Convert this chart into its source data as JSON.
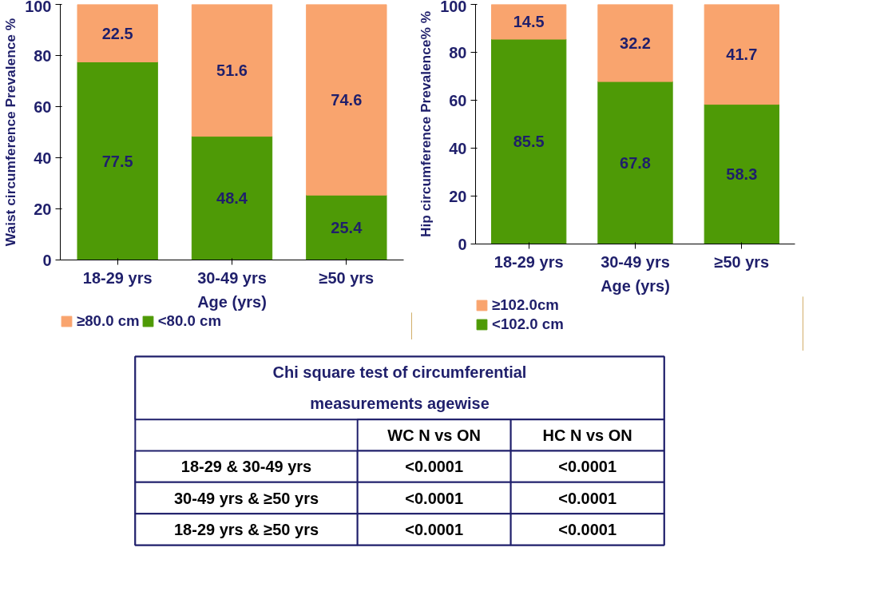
{
  "chart_data": [
    {
      "type": "bar",
      "stacked": true,
      "categories": [
        "18-29 yrs",
        "30-49 yrs",
        "≥50 yrs"
      ],
      "xlabel": "Age (yrs)",
      "ylabel": "Waist circumference Prevalence %",
      "ylim": [
        0,
        100
      ],
      "yticks": [
        0,
        20,
        40,
        60,
        80,
        100
      ],
      "grid": false,
      "legend": "bottom",
      "data_labels": true,
      "series": [
        {
          "name": "<80.0 cm",
          "color": "#4e9a06",
          "values": [
            77.5,
            48.4,
            25.4
          ]
        },
        {
          "name": "≥80.0 cm",
          "color": "#f9a46e",
          "values": [
            22.5,
            51.6,
            74.6
          ]
        }
      ]
    },
    {
      "type": "bar",
      "stacked": true,
      "categories": [
        "18-29 yrs",
        "30-49 yrs",
        "≥50 yrs"
      ],
      "xlabel": "Age (yrs)",
      "ylabel": "Hip circumference Prevalence% %",
      "ylim": [
        0,
        100
      ],
      "yticks": [
        0,
        20,
        40,
        60,
        80,
        100
      ],
      "grid": false,
      "legend": "bottom left",
      "data_labels": true,
      "series": [
        {
          "name": "<102.0 cm",
          "color": "#4e9a06",
          "values": [
            85.5,
            67.8,
            58.3
          ]
        },
        {
          "name": "≥102.0cm",
          "color": "#f9a46e",
          "values": [
            14.5,
            32.2,
            41.7
          ]
        }
      ]
    },
    {
      "type": "other",
      "title": "Chi square test of circumferential measurements agewise",
      "categories": [
        "WC N vs ON",
        "HC N vs ON"
      ],
      "y_categories": [
        "18-29 & 30-49 yrs",
        "30-49 yrs & ≥50 yrs",
        "18-29 yrs & ≥50 yrs"
      ],
      "cell_labels": [
        [
          "<0.0001",
          "<0.0001"
        ],
        [
          "<0.0001",
          "<0.0001"
        ],
        [
          "<0.0001",
          "<0.0001"
        ]
      ]
    }
  ]
}
